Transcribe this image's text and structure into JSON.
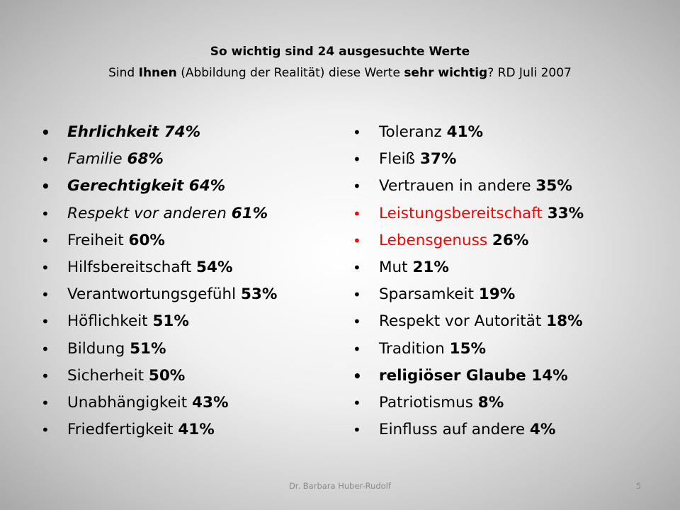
{
  "title": {
    "line1": "So wichtig sind 24 ausgesuchte Werte",
    "line2_pre": "Sind ",
    "line2_bold1": "Ihnen",
    "line2_mid": " (Abbildung der Realität) diese Werte ",
    "line2_bold2": "sehr wichtig",
    "line2_post": "? RD Juli 2007"
  },
  "bullet_symbol": "•",
  "left_items": [
    {
      "name": "Ehrlichkeit",
      "value": "74%",
      "style": "bold-italic"
    },
    {
      "name": "Familie",
      "value": "68%",
      "style": "italic"
    },
    {
      "name": "Gerechtigkeit",
      "value": "64%",
      "style": "bold-italic"
    },
    {
      "name": "Respekt vor anderen",
      "value": "61%",
      "style": "italic"
    },
    {
      "name": "Freiheit",
      "value": "60%",
      "style": "normal"
    },
    {
      "name": "Hilfsbereitschaft",
      "value": "54%",
      "style": "normal"
    },
    {
      "name": "Verantwortungsgefühl",
      "value": "53%",
      "style": "normal"
    },
    {
      "name": "Höflichkeit",
      "value": "51%",
      "style": "normal"
    },
    {
      "name": "Bildung",
      "value": "51%",
      "style": "normal"
    },
    {
      "name": "Sicherheit",
      "value": "50%",
      "style": "normal"
    },
    {
      "name": "Unabhängigkeit",
      "value": "43%",
      "style": "normal"
    },
    {
      "name": "Friedfertigkeit",
      "value": "41%",
      "style": "normal"
    }
  ],
  "right_items": [
    {
      "name": "Toleranz",
      "value": "41%",
      "style": "normal"
    },
    {
      "name": "Fleiß",
      "value": "37%",
      "style": "normal"
    },
    {
      "name": "Vertrauen in andere",
      "value": "35%",
      "style": "normal"
    },
    {
      "name": "Leistungsbereitschaft",
      "value": "33%",
      "style": "red"
    },
    {
      "name": "Lebensgenuss",
      "value": "26%",
      "style": "red"
    },
    {
      "name": "Mut",
      "value": "21%",
      "style": "normal"
    },
    {
      "name": "Sparsamkeit",
      "value": "19%",
      "style": "normal"
    },
    {
      "name": "Respekt vor Autorität",
      "value": "18%",
      "style": "normal"
    },
    {
      "name": "Tradition",
      "value": "15%",
      "style": "normal"
    },
    {
      "name": "religiöser Glaube",
      "value": "14%",
      "style": "bold"
    },
    {
      "name": "Patriotismus",
      "value": "8%",
      "style": "normal"
    },
    {
      "name": "Einfluss auf andere",
      "value": "4%",
      "style": "normal"
    }
  ],
  "colors": {
    "highlight": "#ff0000",
    "footer_text": "#8a8a8a"
  },
  "footer": {
    "author": "Dr. Barbara Huber-Rudolf",
    "page_number": "5"
  }
}
